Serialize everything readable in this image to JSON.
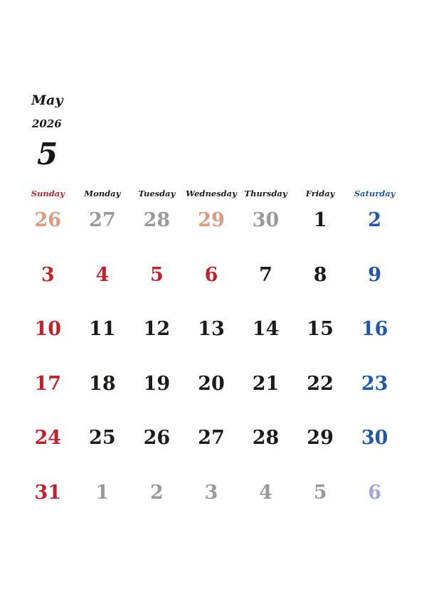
{
  "header": {
    "month_name": "May",
    "year": "2026",
    "month_number": "5"
  },
  "colors": {
    "sunday": "#c3212d",
    "weekday": "#1f1a1a",
    "saturday": "#2158a3",
    "other_sunday": "#dd9a82",
    "other_month": "#9a9a9a",
    "other_saturday": "#9ea8d2"
  },
  "weekdays": [
    {
      "label": "Sunday",
      "color": "#c3212d"
    },
    {
      "label": "Monday",
      "color": "#1f1a1a"
    },
    {
      "label": "Tuesday",
      "color": "#1f1a1a"
    },
    {
      "label": "Wednesday",
      "color": "#1f1a1a"
    },
    {
      "label": "Thursday",
      "color": "#1f1a1a"
    },
    {
      "label": "Friday",
      "color": "#1f1a1a"
    },
    {
      "label": "Saturday",
      "color": "#2158a3"
    }
  ],
  "weeks": [
    [
      {
        "label": "26",
        "color": "#dd9a82"
      },
      {
        "label": "27",
        "color": "#9a9a9a"
      },
      {
        "label": "28",
        "color": "#9a9a9a"
      },
      {
        "label": "29",
        "color": "#dd9a82"
      },
      {
        "label": "30",
        "color": "#9a9a9a"
      },
      {
        "label": "1",
        "color": "#1f1a1a"
      },
      {
        "label": "2",
        "color": "#2158a3"
      }
    ],
    [
      {
        "label": "3",
        "color": "#c3212d"
      },
      {
        "label": "4",
        "color": "#c3212d"
      },
      {
        "label": "5",
        "color": "#c3212d"
      },
      {
        "label": "6",
        "color": "#c3212d"
      },
      {
        "label": "7",
        "color": "#1f1a1a"
      },
      {
        "label": "8",
        "color": "#1f1a1a"
      },
      {
        "label": "9",
        "color": "#2158a3"
      }
    ],
    [
      {
        "label": "10",
        "color": "#c3212d"
      },
      {
        "label": "11",
        "color": "#1f1a1a"
      },
      {
        "label": "12",
        "color": "#1f1a1a"
      },
      {
        "label": "13",
        "color": "#1f1a1a"
      },
      {
        "label": "14",
        "color": "#1f1a1a"
      },
      {
        "label": "15",
        "color": "#1f1a1a"
      },
      {
        "label": "16",
        "color": "#2158a3"
      }
    ],
    [
      {
        "label": "17",
        "color": "#c3212d"
      },
      {
        "label": "18",
        "color": "#1f1a1a"
      },
      {
        "label": "19",
        "color": "#1f1a1a"
      },
      {
        "label": "20",
        "color": "#1f1a1a"
      },
      {
        "label": "21",
        "color": "#1f1a1a"
      },
      {
        "label": "22",
        "color": "#1f1a1a"
      },
      {
        "label": "23",
        "color": "#2158a3"
      }
    ],
    [
      {
        "label": "24",
        "color": "#c3212d"
      },
      {
        "label": "25",
        "color": "#1f1a1a"
      },
      {
        "label": "26",
        "color": "#1f1a1a"
      },
      {
        "label": "27",
        "color": "#1f1a1a"
      },
      {
        "label": "28",
        "color": "#1f1a1a"
      },
      {
        "label": "29",
        "color": "#1f1a1a"
      },
      {
        "label": "30",
        "color": "#2158a3"
      }
    ],
    [
      {
        "label": "31",
        "color": "#c3212d"
      },
      {
        "label": "1",
        "color": "#9a9a9a"
      },
      {
        "label": "2",
        "color": "#9a9a9a"
      },
      {
        "label": "3",
        "color": "#9a9a9a"
      },
      {
        "label": "4",
        "color": "#9a9a9a"
      },
      {
        "label": "5",
        "color": "#9a9a9a"
      },
      {
        "label": "6",
        "color": "#9ea8d2"
      }
    ]
  ]
}
